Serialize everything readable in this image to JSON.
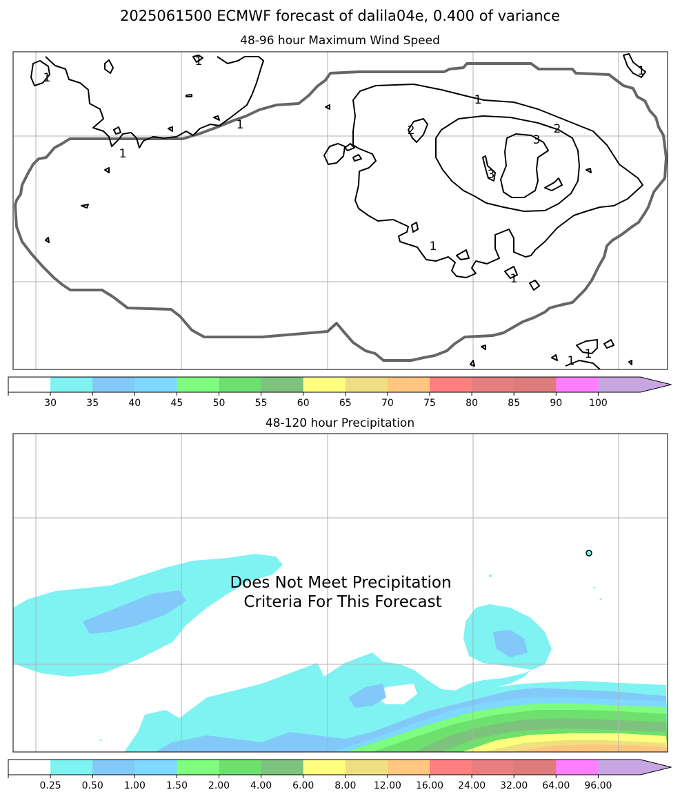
{
  "figure": {
    "title": "2025061500 ECMWF forecast of dalila04e, 0.400 of variance"
  },
  "colors": {
    "frame": "#000000",
    "grid": "#b0b0b0",
    "threshold_contour": "#666666",
    "wind_contour": "#000000",
    "bins": [
      "#ffffff",
      "#7ff2f2",
      "#82c8f8",
      "#7ed8ff",
      "#7ffd7f",
      "#6ee06e",
      "#7dc37d",
      "#ffff7f",
      "#f0df82",
      "#ffc67f",
      "#ff7f7f",
      "#e87f7f",
      "#de7b7b",
      "#ff7dff",
      "#c8a6e2"
    ]
  },
  "chart_data": [
    {
      "type": "contour",
      "title": "48-96 hour Maximum Wind Speed",
      "contour_labels": [
        "1",
        "1",
        "1",
        "1",
        "1",
        "1",
        "1",
        "1",
        "1",
        "1",
        "2",
        "2",
        "3",
        "3"
      ],
      "colorbar": {
        "ticks": [
          "30",
          "35",
          "40",
          "45",
          "50",
          "55",
          "60",
          "65",
          "70",
          "75",
          "80",
          "85",
          "90",
          "100"
        ],
        "extend": "max"
      }
    },
    {
      "type": "filled-contour",
      "title": "48-120 hour Precipitation",
      "annotation": [
        "Does Not Meet Precipitation",
        "Criteria For This Forecast"
      ],
      "colorbar": {
        "ticks": [
          "0.25",
          "0.50",
          "1.00",
          "1.50",
          "2.00",
          "4.00",
          "6.00",
          "8.00",
          "12.00",
          "16.00",
          "24.00",
          "32.00",
          "64.00",
          "96.00"
        ],
        "extend": "max"
      }
    }
  ]
}
